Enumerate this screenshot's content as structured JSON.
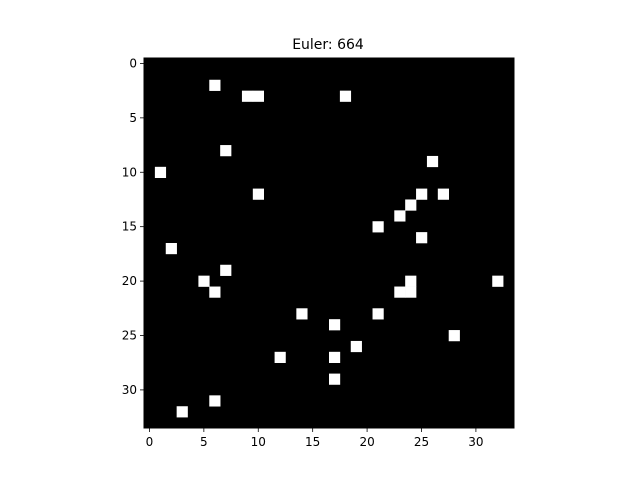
{
  "chart_data": {
    "type": "heatmap",
    "title": "Euler: 664",
    "xlabel": "",
    "ylabel": "",
    "rows": 34,
    "cols": 34,
    "xlim": [
      -0.5,
      33.5
    ],
    "ylim": [
      33.5,
      -0.5
    ],
    "y_axis_inverted": true,
    "grid": false,
    "colormap": "gray",
    "background_value": 0,
    "foreground_value": 1,
    "colors": {
      "background": "#000000",
      "foreground": "#ffffff"
    },
    "x_ticks": [
      0,
      5,
      10,
      15,
      20,
      25,
      30
    ],
    "y_ticks": [
      0,
      5,
      10,
      15,
      20,
      25,
      30
    ],
    "white_pixels": [
      {
        "x": 6,
        "y": 2
      },
      {
        "x": 9,
        "y": 3
      },
      {
        "x": 10,
        "y": 3
      },
      {
        "x": 18,
        "y": 3
      },
      {
        "x": 7,
        "y": 8
      },
      {
        "x": 26,
        "y": 9
      },
      {
        "x": 1,
        "y": 10
      },
      {
        "x": 10,
        "y": 12
      },
      {
        "x": 25,
        "y": 12
      },
      {
        "x": 27,
        "y": 12
      },
      {
        "x": 24,
        "y": 13
      },
      {
        "x": 23,
        "y": 14
      },
      {
        "x": 21,
        "y": 15
      },
      {
        "x": 25,
        "y": 16
      },
      {
        "x": 2,
        "y": 17
      },
      {
        "x": 7,
        "y": 19
      },
      {
        "x": 5,
        "y": 20
      },
      {
        "x": 24,
        "y": 20
      },
      {
        "x": 32,
        "y": 20
      },
      {
        "x": 6,
        "y": 21
      },
      {
        "x": 23,
        "y": 21
      },
      {
        "x": 24,
        "y": 21
      },
      {
        "x": 14,
        "y": 23
      },
      {
        "x": 21,
        "y": 23
      },
      {
        "x": 17,
        "y": 24
      },
      {
        "x": 28,
        "y": 25
      },
      {
        "x": 19,
        "y": 26
      },
      {
        "x": 12,
        "y": 27
      },
      {
        "x": 17,
        "y": 27
      },
      {
        "x": 17,
        "y": 29
      },
      {
        "x": 6,
        "y": 31
      },
      {
        "x": 3,
        "y": 32
      }
    ]
  }
}
